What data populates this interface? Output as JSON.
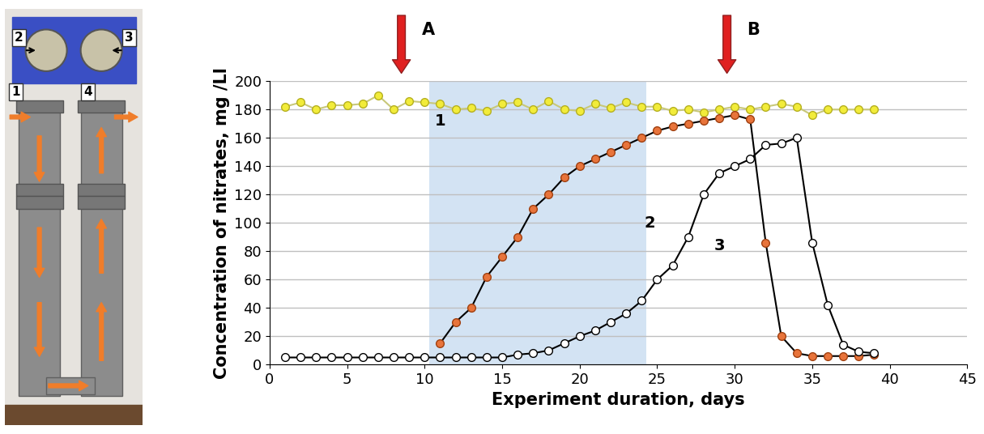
{
  "chart_data": {
    "type": "line",
    "xlabel": "Experiment duration, days",
    "ylabel": "Concentration of nitrates, mg /Ll",
    "xlim": [
      0,
      45
    ],
    "xticks": [
      0,
      5,
      10,
      15,
      20,
      25,
      30,
      35,
      40,
      45
    ],
    "ylim": [
      0,
      200
    ],
    "yticks": [
      0,
      20,
      40,
      60,
      80,
      100,
      120,
      140,
      160,
      180,
      200
    ],
    "grid": true,
    "highlight": [
      10.3,
      24.3
    ],
    "annotations": [
      {
        "text": "A",
        "x": 8.5
      },
      {
        "text": "B",
        "x": 29.5
      }
    ],
    "series": [
      {
        "name": "1",
        "color": "#f2ec3a",
        "marker": "o",
        "label_at": [
          11,
          172
        ],
        "x": [
          1,
          2,
          3,
          4,
          5,
          6,
          7,
          8,
          9,
          10,
          11,
          12,
          13,
          14,
          15,
          16,
          17,
          18,
          19,
          20,
          21,
          22,
          23,
          24,
          25,
          26,
          27,
          28,
          29,
          30,
          31,
          32,
          33,
          34,
          35,
          36,
          37,
          38,
          39
        ],
        "values": [
          182,
          185,
          180,
          183,
          183,
          184,
          190,
          180,
          186,
          185,
          184,
          180,
          181,
          179,
          184,
          185,
          180,
          186,
          180,
          179,
          184,
          181,
          185,
          182,
          182,
          179,
          180,
          178,
          180,
          182,
          180,
          182,
          184,
          182,
          176,
          180,
          180,
          180,
          180
        ]
      },
      {
        "name": "2",
        "color": "#e8743b",
        "marker": "o",
        "label_at": [
          24.5,
          100
        ],
        "x": [
          11,
          12,
          13,
          14,
          15,
          16,
          17,
          18,
          19,
          20,
          21,
          22,
          23,
          24,
          25,
          26,
          27,
          28,
          29,
          30,
          31,
          32,
          33,
          34,
          35,
          36,
          37,
          38,
          39
        ],
        "values": [
          15,
          30,
          40,
          62,
          76,
          90,
          110,
          120,
          132,
          140,
          145,
          150,
          155,
          160,
          165,
          168,
          170,
          172,
          174,
          176,
          173,
          86,
          20,
          8,
          6,
          6,
          6,
          6,
          7
        ]
      },
      {
        "name": "3",
        "color": "#ffffff",
        "marker": "o",
        "label_at": [
          29,
          84
        ],
        "x": [
          1,
          2,
          3,
          4,
          5,
          6,
          7,
          8,
          9,
          10,
          11,
          12,
          13,
          14,
          15,
          16,
          17,
          18,
          19,
          20,
          21,
          22,
          23,
          24,
          25,
          26,
          27,
          28,
          29,
          30,
          31,
          32,
          33,
          34,
          35,
          36,
          37,
          38,
          39
        ],
        "values": [
          5,
          5,
          5,
          5,
          5,
          5,
          5,
          5,
          5,
          5,
          5,
          5,
          5,
          5,
          5,
          7,
          8,
          10,
          15,
          20,
          24,
          30,
          36,
          45,
          60,
          70,
          90,
          120,
          135,
          140,
          145,
          155,
          156,
          160,
          86,
          42,
          14,
          9,
          8
        ]
      }
    ]
  },
  "diagram": {
    "labels": [
      "1",
      "2",
      "3",
      "4"
    ]
  }
}
